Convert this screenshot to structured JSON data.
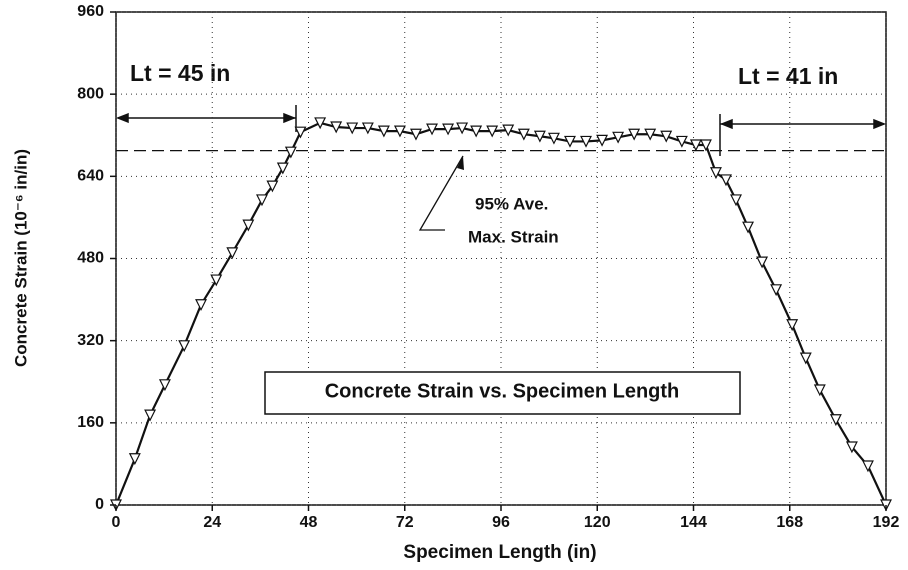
{
  "chart_data": {
    "type": "line",
    "title": "Concrete Strain vs. Specimen Length",
    "x_label": "Specimen Length (in)",
    "y_label": "Concrete Strain (10⁻⁶ in/in)",
    "annotations": [
      "Lt = 45 in",
      "Lt = 41 in",
      "95% Ave.",
      "Max. Strain"
    ],
    "x": [
      0,
      4.7,
      8.5,
      12.2,
      17,
      21.2,
      25,
      29,
      33,
      36.4,
      39,
      41.6,
      43.6,
      46,
      50.9,
      54.9,
      58.9,
      62.8,
      66.8,
      70.8,
      74.8,
      78.8,
      82.8,
      86.3,
      89.8,
      93.8,
      97.8,
      101.7,
      105.7,
      109.2,
      113.2,
      117.2,
      121.2,
      125.2,
      129.2,
      133.2,
      137.2,
      141.1,
      144.6,
      147.1,
      149.6,
      152.1,
      154.6,
      157.6,
      161.1,
      164.6,
      168.6,
      172,
      175.5,
      179.5,
      183.5,
      187.5,
      192
    ],
    "values": [
      0,
      90,
      175,
      234,
      310,
      390,
      438,
      491,
      545,
      594,
      621,
      656,
      687,
      726,
      744,
      736,
      734,
      734,
      728,
      728,
      722,
      732,
      732,
      734,
      728,
      728,
      730,
      722,
      718,
      714,
      708,
      708,
      710,
      716,
      722,
      722,
      718,
      708,
      701,
      701,
      647,
      633,
      594,
      541,
      473,
      419,
      351,
      286,
      224,
      166,
      113,
      76,
      0
    ],
    "color": "#111111",
    "reference_line": 690,
    "xlim": [
      0,
      192
    ],
    "xticks": [
      0,
      24,
      48,
      72,
      96,
      120,
      144,
      168,
      192
    ],
    "ylim": [
      0,
      960
    ],
    "yticks": [
      0,
      160,
      320,
      480,
      640,
      800,
      960
    ],
    "grid": true
  }
}
